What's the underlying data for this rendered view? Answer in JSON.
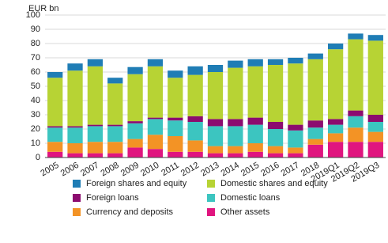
{
  "chart_data": {
    "type": "stacked_bar",
    "y_label": "EUR bn",
    "categories": [
      "2005",
      "2006",
      "2007",
      "2008",
      "2009",
      "2010",
      "2011",
      "2012",
      "2013",
      "2014",
      "2015",
      "2016",
      "2017",
      "2018",
      "2019Q1",
      "2019Q2",
      "2019Q3"
    ],
    "series": [
      {
        "name": "Other assets",
        "color": "#e0157f",
        "values": [
          4,
          3,
          3,
          3,
          7,
          6,
          4,
          4,
          3,
          3,
          4,
          3,
          3,
          9,
          11,
          11,
          11
        ]
      },
      {
        "name": "Currency and deposits",
        "color": "#f39325",
        "values": [
          7,
          7,
          8,
          8,
          6,
          10,
          11,
          8,
          5,
          5,
          6,
          5,
          4,
          4,
          6,
          10,
          7
        ]
      },
      {
        "name": "Domestic loans",
        "color": "#3cc5c0",
        "values": [
          10,
          11,
          11,
          11,
          11,
          11,
          11,
          13,
          14,
          14,
          13,
          12,
          12,
          8,
          6,
          8,
          7
        ]
      },
      {
        "name": "Foreign loans",
        "color": "#8c0b6f",
        "values": [
          1,
          1,
          1,
          1,
          1.5,
          1,
          2,
          4,
          5,
          5,
          5,
          5,
          4,
          5,
          4,
          4,
          5
        ]
      },
      {
        "name": "Domestic shares and equity",
        "color": "#b7d334",
        "values": [
          34,
          39,
          41,
          29,
          33,
          36,
          28,
          29,
          33,
          36,
          36,
          40,
          43,
          43,
          49,
          50,
          52
        ]
      },
      {
        "name": "Foreign shares and equity",
        "color": "#1f7db5",
        "values": [
          4,
          5,
          5,
          4,
          5,
          5,
          5,
          6,
          5,
          5,
          5,
          4,
          4,
          4,
          4,
          4,
          4
        ]
      }
    ],
    "ylim": [
      0,
      100
    ],
    "yticks": [
      0,
      10,
      20,
      30,
      40,
      50,
      60,
      70,
      80,
      90,
      100
    ],
    "grid": true
  }
}
